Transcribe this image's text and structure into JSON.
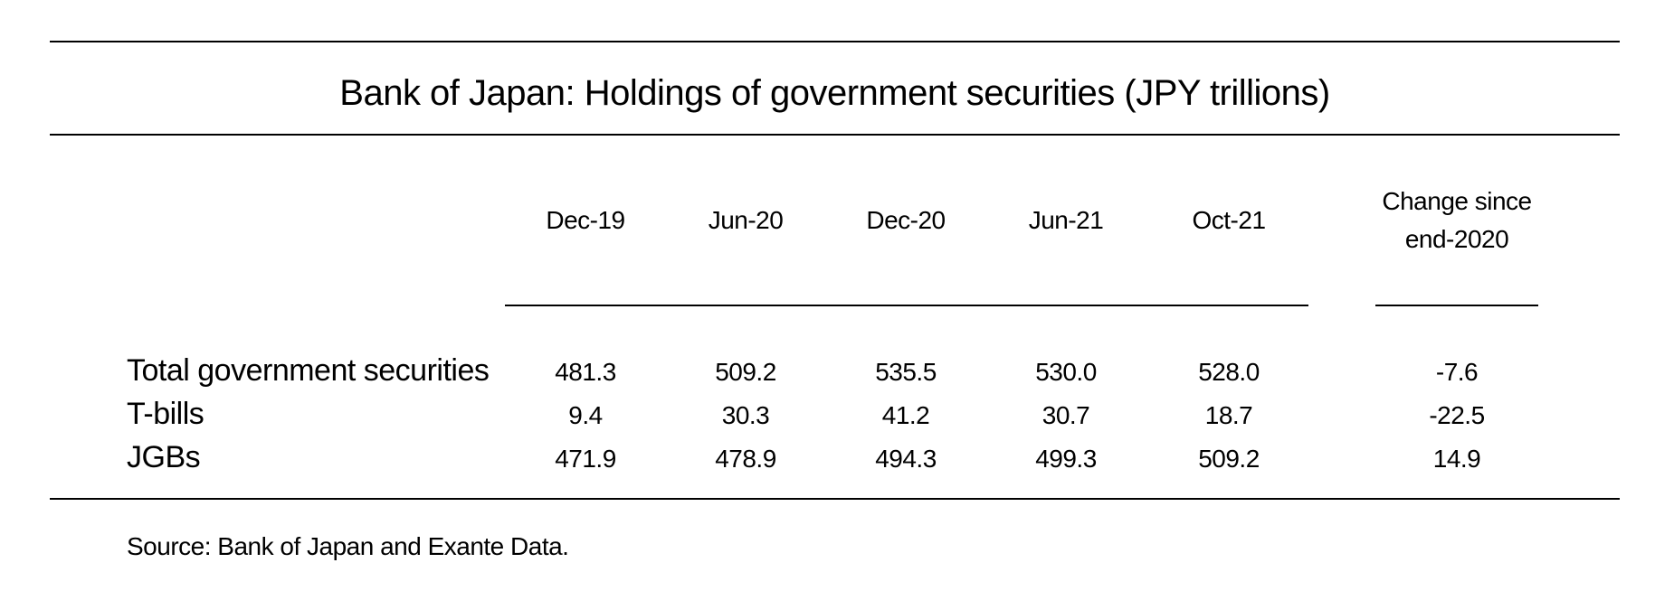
{
  "chart_data": {
    "type": "table",
    "title": "Bank of Japan: Holdings of government securities (JPY trillions)",
    "columns": [
      "Dec-19",
      "Jun-20",
      "Dec-20",
      "Jun-21",
      "Oct-21"
    ],
    "change_header": [
      "Change since",
      "end-2020"
    ],
    "rows": [
      {
        "label": "Total government securities",
        "values": [
          "481.3",
          "509.2",
          "535.5",
          "530.0",
          "528.0"
        ],
        "change": "-7.6"
      },
      {
        "label": "T-bills",
        "values": [
          "9.4",
          "30.3",
          "41.2",
          "30.7",
          "18.7"
        ],
        "change": "-22.5"
      },
      {
        "label": "JGBs",
        "values": [
          "471.9",
          "478.9",
          "494.3",
          "499.3",
          "509.2"
        ],
        "change": "14.9"
      }
    ],
    "source": "Source: Bank of Japan and Exante Data."
  }
}
